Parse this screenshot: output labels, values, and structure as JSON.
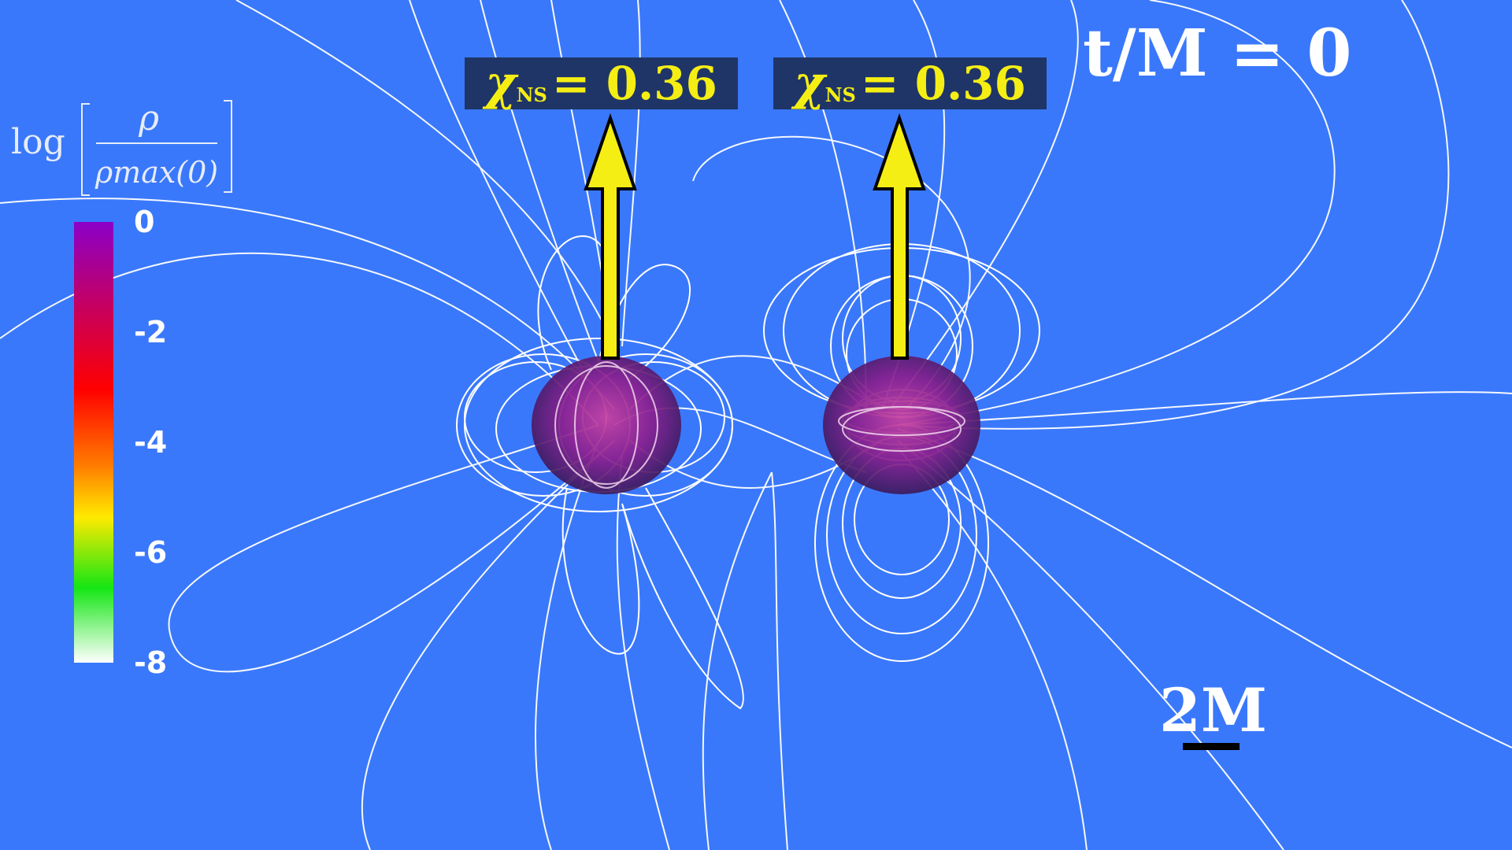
{
  "time_label": "t/M = 0",
  "spin_labels": [
    {
      "symbol": "χ",
      "subscript": "NS",
      "value": "= 0.36"
    },
    {
      "symbol": "χ",
      "subscript": "NS",
      "value": "= 0.36"
    }
  ],
  "colorbar": {
    "title_prefix": "log",
    "numerator": "ρ",
    "denominator": "ρmax(0)",
    "ticks": [
      "0",
      "-2",
      "-4",
      "-6",
      "-8"
    ]
  },
  "scale": {
    "label": "2M"
  },
  "colors": {
    "background": "#3a78fb",
    "arrow": "#f5ee14",
    "field_lines": "#ffffff",
    "star": "#9a1f9e"
  }
}
